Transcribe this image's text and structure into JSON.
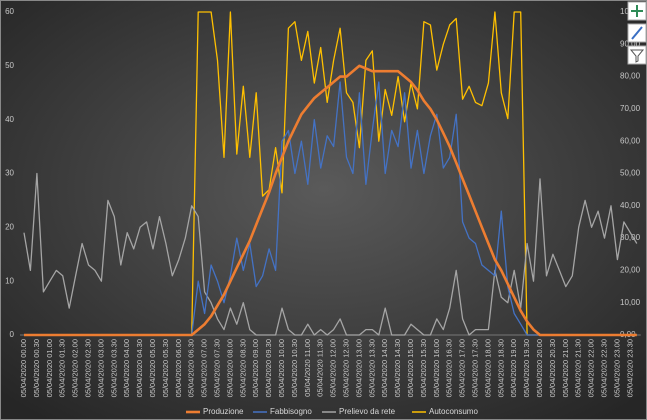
{
  "chart_data": {
    "type": "line",
    "categories": [
      "05/04/2020 00.00",
      null,
      "05/04/2020 00.30",
      null,
      "05/04/2020 01.00",
      null,
      "05/04/2020 01.30",
      null,
      "05/04/2020 02.00",
      null,
      "05/04/2020 02.30",
      null,
      "05/04/2020 03.00",
      null,
      "05/04/2020 03.30",
      null,
      "05/04/2020 04.00",
      null,
      "05/04/2020 04.30",
      null,
      "05/04/2020 05.00",
      null,
      "05/04/2020 05.30",
      null,
      "05/04/2020 06.00",
      null,
      "05/04/2020 06.30",
      null,
      "05/04/2020 07.00",
      null,
      "05/04/2020 07.30",
      null,
      "05/04/2020 08.00",
      null,
      "05/04/2020 08.30",
      null,
      "05/04/2020 09.00",
      null,
      "05/04/2020 09.30",
      null,
      "05/04/2020 10.00",
      null,
      "05/04/2020 10.30",
      null,
      "05/04/2020 11.00",
      null,
      "05/04/2020 11.30",
      null,
      "05/04/2020 12.00",
      null,
      "05/04/2020 12.30",
      null,
      "05/04/2020 13.00",
      null,
      "05/04/2020 13.30",
      null,
      "05/04/2020 14.00",
      null,
      "05/04/2020 14.30",
      null,
      "05/04/2020 15.00",
      null,
      "05/04/2020 15.30",
      null,
      "05/04/2020 16.00",
      null,
      "05/04/2020 16.30",
      null,
      "05/04/2020 17.00",
      null,
      "05/04/2020 17.30",
      null,
      "05/04/2020 18.00",
      null,
      "05/04/2020 18.30",
      null,
      "05/04/2020 19.00",
      null,
      "05/04/2020 19.30",
      null,
      "05/04/2020 20.00",
      null,
      "05/04/2020 20.30",
      null,
      "05/04/2020 21.00",
      null,
      "05/04/2020 21.30",
      null,
      "05/04/2020 22.00",
      null,
      "05/04/2020 22.30",
      null,
      "05/04/2020 23.00",
      null,
      "05/04/2020 23.30",
      null
    ],
    "series": [
      {
        "name": "Produzione",
        "color": "#ed7d31",
        "values": [
          0,
          0,
          0,
          0,
          0,
          0,
          0,
          0,
          0,
          0,
          0,
          0,
          0,
          0,
          0,
          0,
          0,
          0,
          0,
          0,
          0,
          0,
          0,
          0,
          0,
          0,
          0,
          1,
          2,
          3.5,
          5.5,
          7.5,
          10,
          12.5,
          15,
          17.5,
          20.5,
          23.5,
          26.5,
          30,
          33,
          36,
          38.5,
          41,
          42.5,
          44,
          45,
          46,
          47,
          48,
          48,
          49,
          50,
          49.5,
          49,
          49,
          49,
          49,
          49,
          48,
          47,
          45.5,
          43.5,
          42,
          40,
          37.5,
          35,
          32,
          29,
          26,
          23,
          20,
          17,
          14,
          12,
          9.5,
          7,
          4.5,
          2.5,
          1,
          0,
          0,
          0,
          0,
          0,
          0,
          0,
          0,
          0,
          0,
          0,
          0,
          0,
          0,
          0,
          0
        ]
      },
      {
        "name": "Fabbisogno",
        "color": "#4472c4",
        "values": [
          0,
          0,
          0,
          0,
          0,
          0,
          0,
          0,
          0,
          0,
          0,
          0,
          0,
          0,
          0,
          0,
          0,
          0,
          0,
          0,
          0,
          0,
          0,
          0,
          0,
          0,
          0,
          10,
          4,
          13,
          10,
          6,
          11,
          18,
          12,
          17,
          9,
          11,
          16,
          12,
          36,
          38,
          30,
          36,
          28,
          40,
          31,
          37,
          35,
          47,
          33,
          30,
          45,
          28,
          38,
          47,
          30,
          38,
          35,
          45,
          31,
          38,
          30,
          37,
          41,
          31,
          33,
          41,
          21,
          18,
          17,
          13,
          12,
          11,
          23,
          9,
          4,
          2,
          0,
          0,
          0,
          0,
          0,
          0,
          0,
          0,
          0,
          0,
          0,
          0,
          0,
          0,
          0,
          0,
          0,
          0
        ]
      },
      {
        "name": "Prelievo da rete",
        "color": "#a5a5a5",
        "values": [
          19,
          12,
          30,
          8,
          10,
          12,
          11,
          5,
          11,
          17,
          13,
          12,
          10,
          25,
          22,
          13,
          19,
          16,
          20,
          21,
          16,
          22,
          17,
          11,
          14,
          18,
          24,
          22,
          8,
          6,
          3,
          1,
          5,
          2,
          6,
          1,
          0,
          0,
          0,
          0,
          5,
          1,
          0,
          0,
          2,
          0,
          1,
          0,
          1,
          3,
          0,
          0,
          0,
          1,
          1,
          0,
          5,
          0,
          0,
          0,
          2,
          1,
          0,
          0,
          3,
          1,
          5,
          12,
          3,
          0,
          1,
          1,
          1,
          12,
          7,
          6,
          12,
          5,
          17,
          10,
          29,
          11,
          15,
          12,
          9,
          11,
          20,
          25,
          20,
          23,
          18,
          24,
          14,
          21,
          19,
          17
        ]
      },
      {
        "name": "Autoconsumo",
        "color": "#ffc000",
        "axis": "y2",
        "values": [
          0,
          0,
          0,
          0,
          0,
          0,
          0,
          0,
          0,
          0,
          0,
          0,
          0,
          0,
          0,
          0,
          0,
          0,
          0,
          0,
          0,
          0,
          0,
          0,
          0,
          0,
          0,
          100,
          100,
          100,
          85,
          55,
          100,
          56,
          77,
          55,
          75,
          43,
          45,
          58,
          44,
          95,
          97,
          85,
          94,
          78,
          89,
          72,
          85,
          95,
          75,
          72,
          58,
          85,
          88,
          60,
          76,
          68,
          80,
          66,
          78,
          70,
          97,
          96,
          82,
          90,
          96,
          98,
          73,
          77,
          72,
          71,
          78,
          100,
          75,
          67,
          100,
          100,
          0,
          0,
          0,
          0,
          0,
          0,
          0,
          0,
          0,
          0,
          0,
          0,
          0,
          0,
          0,
          0,
          0,
          0
        ]
      }
    ],
    "ylim": [
      0,
      60
    ],
    "yticks": [
      0,
      10,
      20,
      30,
      40,
      50,
      60
    ],
    "y2lim": [
      0,
      100
    ],
    "y2ticks": [
      {
        "value": 0,
        "label": "0,00"
      },
      {
        "value": 10,
        "label": "10,00"
      },
      {
        "value": 20,
        "label": "20,00"
      },
      {
        "value": 30,
        "label": "30,00"
      },
      {
        "value": 40,
        "label": "40,00"
      },
      {
        "value": 50,
        "label": "50,00"
      },
      {
        "value": 60,
        "label": "60,00"
      },
      {
        "value": 70,
        "label": "70,00"
      },
      {
        "value": 80,
        "label": "80,00"
      },
      {
        "value": 90,
        "label": "90,00"
      },
      {
        "value": 100,
        "label": "100,00"
      }
    ],
    "grid": false,
    "legend": "bottom"
  }
}
